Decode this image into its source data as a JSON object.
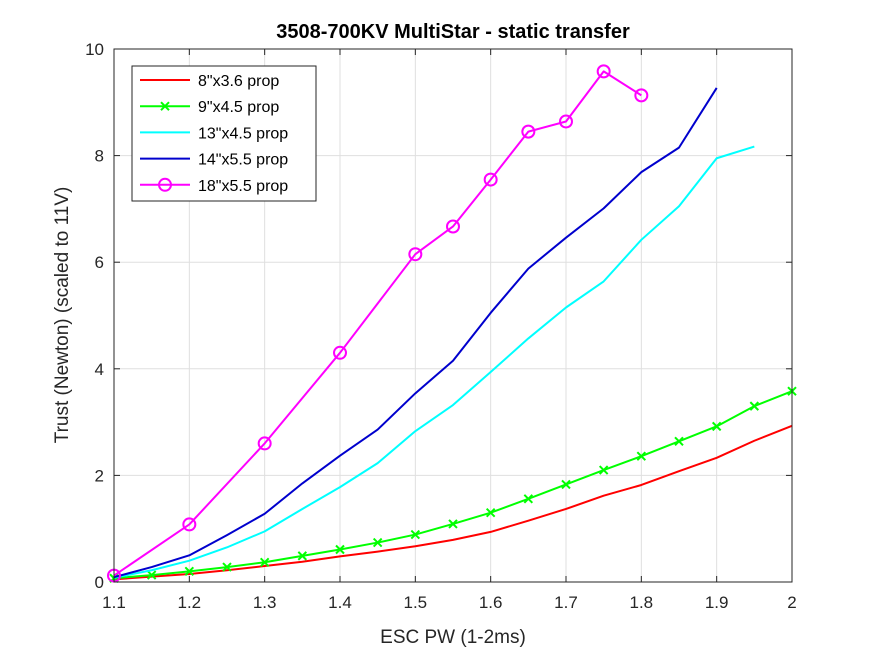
{
  "chart_data": {
    "type": "line",
    "title": "3508-700KV MultiStar - static transfer",
    "xlabel": "ESC PW (1-2ms)",
    "ylabel": "Trust (Newton) (scaled to 11V)",
    "xlim": [
      1.1,
      2.0
    ],
    "ylim": [
      0,
      10
    ],
    "xticks": [
      1.1,
      1.2,
      1.3,
      1.4,
      1.5,
      1.6,
      1.7,
      1.8,
      1.9,
      2.0
    ],
    "xtick_labels": [
      "1.1",
      "1.2",
      "1.3",
      "1.4",
      "1.5",
      "1.6",
      "1.7",
      "1.8",
      "1.9",
      "2"
    ],
    "yticks": [
      0,
      2,
      4,
      6,
      8,
      10
    ],
    "ytick_labels": [
      "0",
      "2",
      "4",
      "6",
      "8",
      "10"
    ],
    "grid": true,
    "legend_position": "top-left",
    "series": [
      {
        "name": "8\"x3.6 prop",
        "color": "#ff0000",
        "marker": "none",
        "x": [
          1.1,
          1.15,
          1.2,
          1.25,
          1.3,
          1.35,
          1.4,
          1.45,
          1.5,
          1.55,
          1.6,
          1.65,
          1.7,
          1.75,
          1.8,
          1.85,
          1.9,
          1.95,
          2.0
        ],
        "y": [
          0.05,
          0.1,
          0.15,
          0.22,
          0.3,
          0.38,
          0.48,
          0.57,
          0.67,
          0.79,
          0.94,
          1.15,
          1.37,
          1.62,
          1.82,
          2.08,
          2.33,
          2.65,
          2.93
        ]
      },
      {
        "name": "9\"x4.5 prop",
        "color": "#00ff00",
        "marker": "x",
        "x": [
          1.1,
          1.15,
          1.2,
          1.25,
          1.3,
          1.35,
          1.4,
          1.45,
          1.5,
          1.55,
          1.6,
          1.65,
          1.7,
          1.75,
          1.8,
          1.85,
          1.9,
          1.95,
          2.0
        ],
        "y": [
          0.07,
          0.13,
          0.2,
          0.28,
          0.37,
          0.49,
          0.61,
          0.74,
          0.89,
          1.09,
          1.3,
          1.56,
          1.83,
          2.1,
          2.36,
          2.64,
          2.92,
          3.3,
          3.58
        ]
      },
      {
        "name": "13\"x4.5 prop",
        "color": "#00ffff",
        "marker": "none",
        "x": [
          1.1,
          1.15,
          1.2,
          1.25,
          1.3,
          1.35,
          1.4,
          1.45,
          1.5,
          1.55,
          1.6,
          1.65,
          1.7,
          1.75,
          1.8,
          1.85,
          1.9,
          1.95
        ],
        "y": [
          0.08,
          0.22,
          0.4,
          0.65,
          0.95,
          1.37,
          1.78,
          2.23,
          2.83,
          3.32,
          3.94,
          4.57,
          5.15,
          5.64,
          6.42,
          7.05,
          7.95,
          8.17
        ]
      },
      {
        "name": "14\"x5.5 prop",
        "color": "#0000cd",
        "marker": "none",
        "x": [
          1.1,
          1.15,
          1.2,
          1.25,
          1.3,
          1.35,
          1.4,
          1.45,
          1.5,
          1.55,
          1.6,
          1.65,
          1.7,
          1.75,
          1.8,
          1.85,
          1.9
        ],
        "y": [
          0.09,
          0.28,
          0.5,
          0.88,
          1.28,
          1.85,
          2.37,
          2.86,
          3.54,
          4.15,
          5.05,
          5.88,
          6.46,
          7.01,
          7.69,
          8.15,
          9.27
        ]
      },
      {
        "name": "18\"x5.5 prop",
        "color": "#ff00ff",
        "marker": "o",
        "x": [
          1.1,
          1.2,
          1.3,
          1.4,
          1.5,
          1.55,
          1.6,
          1.65,
          1.7,
          1.75,
          1.8
        ],
        "y": [
          0.12,
          1.08,
          2.6,
          4.3,
          6.15,
          6.67,
          7.55,
          8.45,
          8.64,
          9.58,
          9.13
        ]
      }
    ]
  }
}
